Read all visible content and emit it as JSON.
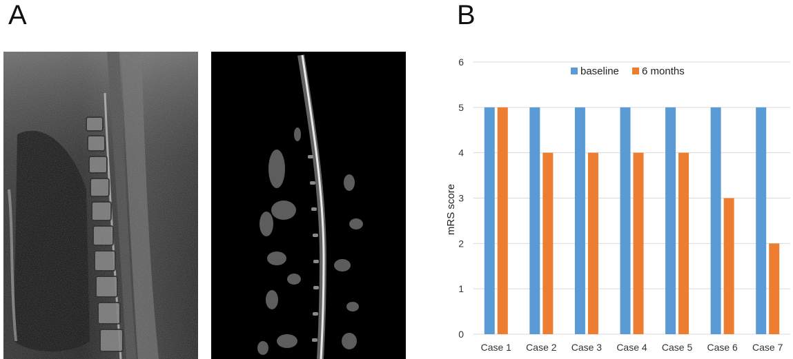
{
  "panels": {
    "a_label": "A",
    "b_label": "B"
  },
  "images": {
    "left_icon": "mri-t2-sagittal-spine",
    "right_icon": "mri-processed-sagittal-spine"
  },
  "colors": {
    "baseline": "#5B9BD5",
    "six_months": "#ED7D31",
    "grid": "#d9d9d9"
  },
  "chart_data": {
    "type": "bar",
    "categories": [
      "Case 1",
      "Case 2",
      "Case 3",
      "Case 4",
      "Case 5",
      "Case 6",
      "Case 7"
    ],
    "series": [
      {
        "name": "baseline",
        "values": [
          5,
          5,
          5,
          5,
          5,
          5,
          5
        ]
      },
      {
        "name": "6 months",
        "values": [
          5,
          4,
          4,
          4,
          4,
          3,
          2
        ]
      }
    ],
    "ylabel": "mRS score",
    "xlabel": "",
    "ylim": [
      0,
      6
    ],
    "yticks": [
      0,
      1,
      2,
      3,
      4,
      5,
      6
    ],
    "grid": true,
    "legend": "top"
  }
}
